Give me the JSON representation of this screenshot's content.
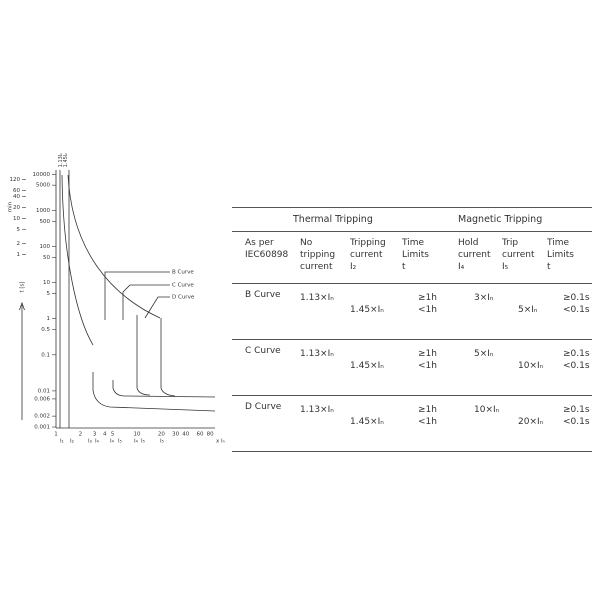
{
  "diagram": {
    "seconds_labels": [
      "10000",
      "5000",
      "1000",
      "500",
      "100",
      "50",
      "10",
      "5",
      "1",
      "0.5",
      "0.1",
      "0.01",
      "0.006",
      "0.002",
      "0.001"
    ],
    "minutes_labels": [
      "120",
      "60",
      "40",
      "20",
      "10",
      "5",
      "2",
      "1"
    ],
    "minutes_unit": "min",
    "seconds_unit": "t [s]",
    "vertical_labels": [
      "1.13Iₙ",
      "1.45Iₙ"
    ],
    "x_labels": [
      "1",
      "2",
      "3",
      "4",
      "5",
      "10",
      "20",
      "30",
      "40",
      "60",
      "80"
    ],
    "x_unit": "x Iₙ",
    "current_marks": [
      "I₁",
      "I₂",
      "I₃",
      "I₄",
      "I₄",
      "I₅",
      "I₄",
      "I₅",
      "I₅"
    ],
    "curve_labels": [
      "B Curve",
      "C Curve",
      "D Curve"
    ]
  },
  "table": {
    "groups": [
      "Thermal Tripping",
      "Magnetic Tripping"
    ],
    "columns": [
      [
        "As per",
        "IEC60898"
      ],
      [
        "No",
        "tripping",
        "current"
      ],
      [
        "Tripping",
        "current",
        "I₂"
      ],
      [
        "Time",
        "Limits",
        "t"
      ],
      [
        "Hold",
        "current",
        "I₄"
      ],
      [
        "Trip",
        "current",
        "I₅"
      ],
      [
        "Time",
        "Limits",
        "t"
      ]
    ],
    "rows": [
      [
        [
          "B Curve"
        ],
        [
          "1.13×Iₙ"
        ],
        [
          "1.45×Iₙ"
        ],
        [
          "≥1h",
          "<1h"
        ],
        [
          "3×Iₙ"
        ],
        [
          "5×Iₙ"
        ],
        [
          "≥0.1s",
          "<0.1s"
        ]
      ],
      [
        [
          "C Curve"
        ],
        [
          "1.13×Iₙ"
        ],
        [
          "1.45×Iₙ"
        ],
        [
          "≥1h",
          "<1h"
        ],
        [
          "5×Iₙ"
        ],
        [
          "10×Iₙ"
        ],
        [
          "≥0.1s",
          "<0.1s"
        ]
      ],
      [
        [
          "D Curve"
        ],
        [
          "1.13×Iₙ"
        ],
        [
          "1.45×Iₙ"
        ],
        [
          "≥1h",
          "<1h"
        ],
        [
          "10×Iₙ"
        ],
        [
          "20×Iₙ"
        ],
        [
          "≥0.1s",
          "<0.1s"
        ]
      ]
    ]
  }
}
